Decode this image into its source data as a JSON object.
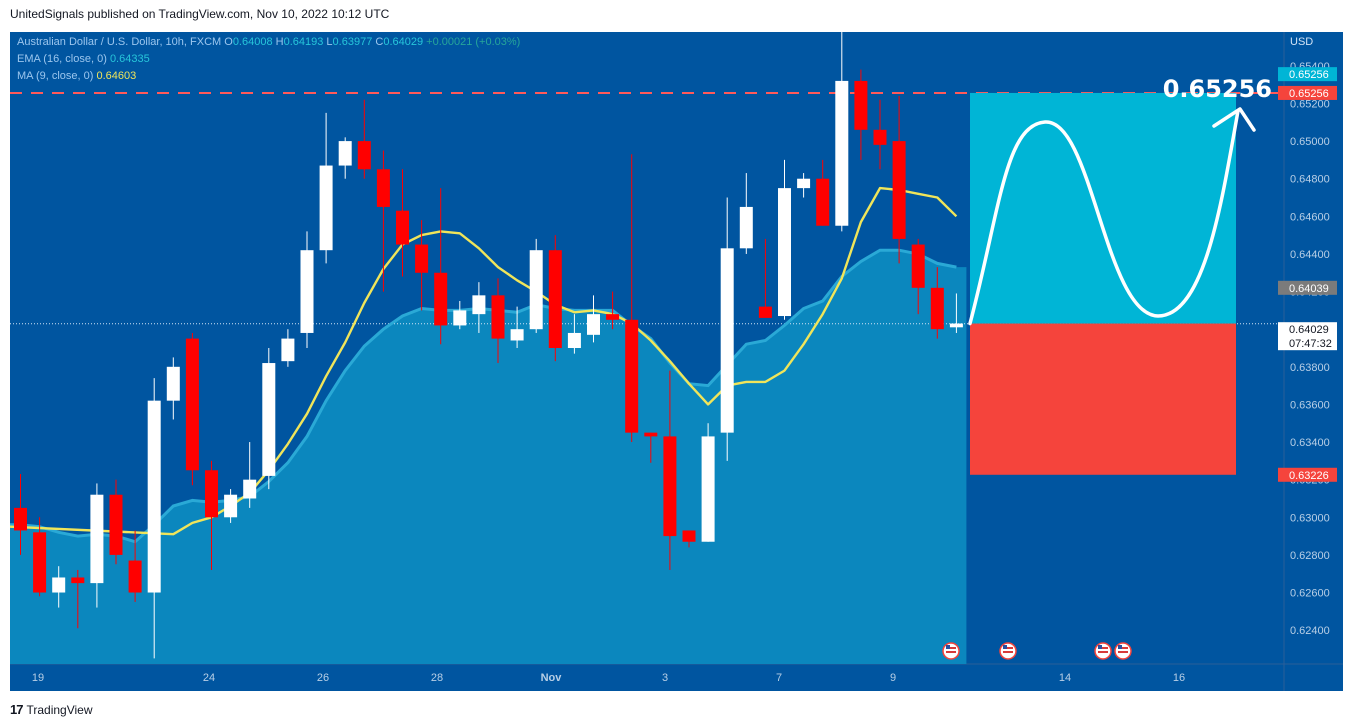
{
  "header": {
    "text": "UnitedSignals published on TradingView.com, Nov 10, 2022 10:12 UTC"
  },
  "footer": {
    "logo_mark": "17",
    "brand": "TradingView"
  },
  "legend": {
    "symbol": "Australian Dollar / U.S. Dollar, 10h, FXCM",
    "o_label": "O",
    "o": "0.64008",
    "h_label": "H",
    "h": "0.64193",
    "l_label": "L",
    "l": "0.63977",
    "c_label": "C",
    "c": "0.64029",
    "change": "+0.00021 (+0.03%)",
    "ema_label": "EMA (16, close, 0)",
    "ema_value": "0.64335",
    "ma_label": "MA (9, close, 0)",
    "ma_value": "0.64603"
  },
  "colors": {
    "background": "#0055a0",
    "ema_area": "#0b87be",
    "ema_line": "#2aa9d6",
    "ma_line": "#f0e55a",
    "bull": "#ffffff",
    "bear": "#ff0000",
    "target_zone": "#00b5d6",
    "stop_zone": "#f5443c",
    "dashed_level": "#ff5a5a"
  },
  "chart_data": {
    "type": "candlestick",
    "currency": "USD",
    "ylim": [
      0.6222,
      0.6558
    ],
    "y_ticks": [
      "0.65400",
      "0.65200",
      "0.65000",
      "0.64800",
      "0.64600",
      "0.64400",
      "0.64200",
      "0.64000",
      "0.63800",
      "0.63600",
      "0.63400",
      "0.63200",
      "0.63000",
      "0.62800",
      "0.62600",
      "0.62400"
    ],
    "x_ticks": [
      "19",
      "24",
      "26",
      "28",
      "Nov",
      "3",
      "7",
      "9",
      "14",
      "16"
    ],
    "candles": [
      {
        "o": 0.6305,
        "h": 0.6323,
        "l": 0.628,
        "c": 0.6293
      },
      {
        "o": 0.6292,
        "h": 0.63,
        "l": 0.6258,
        "c": 0.626
      },
      {
        "o": 0.626,
        "h": 0.6274,
        "l": 0.6252,
        "c": 0.6268
      },
      {
        "o": 0.6268,
        "h": 0.6272,
        "l": 0.6241,
        "c": 0.6265
      },
      {
        "o": 0.6265,
        "h": 0.6318,
        "l": 0.6252,
        "c": 0.6312
      },
      {
        "o": 0.6312,
        "h": 0.632,
        "l": 0.6275,
        "c": 0.628
      },
      {
        "o": 0.6277,
        "h": 0.6293,
        "l": 0.6255,
        "c": 0.626
      },
      {
        "o": 0.626,
        "h": 0.6374,
        "l": 0.6225,
        "c": 0.6362
      },
      {
        "o": 0.6362,
        "h": 0.6385,
        "l": 0.6352,
        "c": 0.638
      },
      {
        "o": 0.6395,
        "h": 0.6398,
        "l": 0.6317,
        "c": 0.6325
      },
      {
        "o": 0.6325,
        "h": 0.633,
        "l": 0.6272,
        "c": 0.63
      },
      {
        "o": 0.63,
        "h": 0.6315,
        "l": 0.6297,
        "c": 0.6312
      },
      {
        "o": 0.631,
        "h": 0.634,
        "l": 0.6305,
        "c": 0.632
      },
      {
        "o": 0.6322,
        "h": 0.639,
        "l": 0.6315,
        "c": 0.6382
      },
      {
        "o": 0.6383,
        "h": 0.64,
        "l": 0.638,
        "c": 0.6395
      },
      {
        "o": 0.6398,
        "h": 0.6452,
        "l": 0.639,
        "c": 0.6442
      },
      {
        "o": 0.6442,
        "h": 0.6515,
        "l": 0.6435,
        "c": 0.6487
      },
      {
        "o": 0.6487,
        "h": 0.6502,
        "l": 0.648,
        "c": 0.65
      },
      {
        "o": 0.65,
        "h": 0.6522,
        "l": 0.648,
        "c": 0.6485
      },
      {
        "o": 0.6485,
        "h": 0.6495,
        "l": 0.642,
        "c": 0.6465
      },
      {
        "o": 0.6463,
        "h": 0.6485,
        "l": 0.6428,
        "c": 0.6445
      },
      {
        "o": 0.6445,
        "h": 0.6458,
        "l": 0.641,
        "c": 0.643
      },
      {
        "o": 0.643,
        "h": 0.6475,
        "l": 0.6392,
        "c": 0.6402
      },
      {
        "o": 0.6402,
        "h": 0.6415,
        "l": 0.64,
        "c": 0.641
      },
      {
        "o": 0.6408,
        "h": 0.6425,
        "l": 0.6398,
        "c": 0.6418
      },
      {
        "o": 0.6418,
        "h": 0.6427,
        "l": 0.6382,
        "c": 0.6395
      },
      {
        "o": 0.6394,
        "h": 0.6412,
        "l": 0.639,
        "c": 0.64
      },
      {
        "o": 0.64,
        "h": 0.6448,
        "l": 0.6398,
        "c": 0.6442
      },
      {
        "o": 0.6442,
        "h": 0.645,
        "l": 0.6383,
        "c": 0.639
      },
      {
        "o": 0.639,
        "h": 0.6408,
        "l": 0.6387,
        "c": 0.6398
      },
      {
        "o": 0.6397,
        "h": 0.6418,
        "l": 0.6393,
        "c": 0.6408
      },
      {
        "o": 0.6408,
        "h": 0.642,
        "l": 0.64,
        "c": 0.6405
      },
      {
        "o": 0.6405,
        "h": 0.6493,
        "l": 0.634,
        "c": 0.6345
      },
      {
        "o": 0.6345,
        "h": 0.6345,
        "l": 0.6329,
        "c": 0.6343
      },
      {
        "o": 0.6343,
        "h": 0.6378,
        "l": 0.6272,
        "c": 0.629
      },
      {
        "o": 0.6293,
        "h": 0.6293,
        "l": 0.6284,
        "c": 0.6287
      },
      {
        "o": 0.6287,
        "h": 0.635,
        "l": 0.6287,
        "c": 0.6343
      },
      {
        "o": 0.6345,
        "h": 0.647,
        "l": 0.633,
        "c": 0.6443
      },
      {
        "o": 0.6443,
        "h": 0.6483,
        "l": 0.644,
        "c": 0.6465
      },
      {
        "o": 0.6412,
        "h": 0.6448,
        "l": 0.6408,
        "c": 0.6406
      },
      {
        "o": 0.6407,
        "h": 0.649,
        "l": 0.6405,
        "c": 0.6475
      },
      {
        "o": 0.6475,
        "h": 0.6483,
        "l": 0.647,
        "c": 0.648
      },
      {
        "o": 0.648,
        "h": 0.649,
        "l": 0.6455,
        "c": 0.6455
      },
      {
        "o": 0.6455,
        "h": 0.656,
        "l": 0.6452,
        "c": 0.6532
      },
      {
        "o": 0.6532,
        "h": 0.6538,
        "l": 0.649,
        "c": 0.6506
      },
      {
        "o": 0.6506,
        "h": 0.6522,
        "l": 0.6485,
        "c": 0.6498
      },
      {
        "o": 0.65,
        "h": 0.6524,
        "l": 0.6435,
        "c": 0.6448
      },
      {
        "o": 0.6445,
        "h": 0.6448,
        "l": 0.6408,
        "c": 0.6422
      },
      {
        "o": 0.6422,
        "h": 0.6433,
        "l": 0.6395,
        "c": 0.64
      },
      {
        "o": 0.6401,
        "h": 0.6419,
        "l": 0.6398,
        "c": 0.6403
      }
    ],
    "ma": [
      null,
      null,
      null,
      null,
      null,
      null,
      null,
      null,
      0.6291,
      0.6297,
      0.63,
      0.6306,
      0.6313,
      0.6325,
      0.6339,
      0.6355,
      0.6375,
      0.6393,
      0.6414,
      0.6432,
      0.6445,
      0.645,
      0.6452,
      0.6451,
      0.6443,
      0.6433,
      0.6426,
      0.642,
      0.6413,
      0.6409,
      0.641,
      0.6408,
      0.6403,
      0.6394,
      0.6383,
      0.6371,
      0.636,
      0.637,
      0.6372,
      0.6372,
      0.6378,
      0.6392,
      0.6408,
      0.6427,
      0.6457,
      0.6475,
      0.6474,
      0.6472,
      0.647,
      0.646
    ],
    "ema": [
      0.6296,
      0.6295,
      0.6292,
      0.629,
      0.6291,
      0.629,
      0.6287,
      0.6296,
      0.6306,
      0.6309,
      0.6308,
      0.6309,
      0.6311,
      0.6319,
      0.6329,
      0.6343,
      0.6362,
      0.6378,
      0.6391,
      0.64,
      0.6407,
      0.6411,
      0.641,
      0.641,
      0.6411,
      0.641,
      0.6409,
      0.6413,
      0.6411,
      0.641,
      0.641,
      0.641,
      0.6402,
      0.6395,
      0.6382,
      0.6371,
      0.637,
      0.6381,
      0.6392,
      0.6394,
      0.6402,
      0.6411,
      0.6415,
      0.6428,
      0.6436,
      0.6442,
      0.6442,
      0.644,
      0.6435,
      0.6433
    ],
    "last_price": 0.64029,
    "countdown": "07:47:32",
    "target_label": "0.65256",
    "price_labels": {
      "target_top": "0.65256",
      "target_red": "0.65256",
      "level": "0.64039",
      "current": "0.64029",
      "stop": "0.63226"
    },
    "forecast": {
      "entry": 0.6403,
      "target": 0.65256,
      "stop": 0.63226,
      "start_x_label": "Nov 10",
      "end_x_label": "Nov 16"
    },
    "event_icons": 4
  }
}
